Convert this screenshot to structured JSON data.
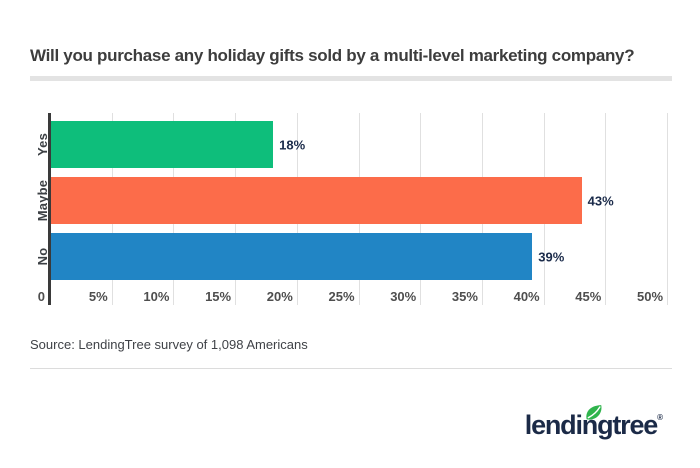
{
  "title": "Will you purchase any holiday gifts sold by a multi-level marketing company?",
  "chart_data": {
    "type": "bar",
    "orientation": "horizontal",
    "title": "Will you purchase any holiday gifts sold by a multi-level marketing company?",
    "categories": [
      "Yes",
      "Maybe",
      "No"
    ],
    "values": [
      18,
      43,
      39
    ],
    "value_labels": [
      "18%",
      "43%",
      "39%"
    ],
    "bar_colors": [
      "#0ebe7b",
      "#fc6c4a",
      "#2185c5"
    ],
    "xlim": [
      0,
      50
    ],
    "x_tick_step": 5,
    "x_tick_labels": [
      "0",
      "5%",
      "10%",
      "15%",
      "20%",
      "25%",
      "30%",
      "35%",
      "40%",
      "45%",
      "50%"
    ],
    "grid": true,
    "legend": false,
    "gridline_color": "#e0e0e0",
    "axis_color": "#3a3a3a"
  },
  "source": {
    "text": "Source: LendingTree survey of 1,098 Americans"
  },
  "logo": {
    "text": "lendingtree",
    "registered": "®",
    "text_color": "#1b2a47",
    "leaf_color": "#2fb44c"
  }
}
